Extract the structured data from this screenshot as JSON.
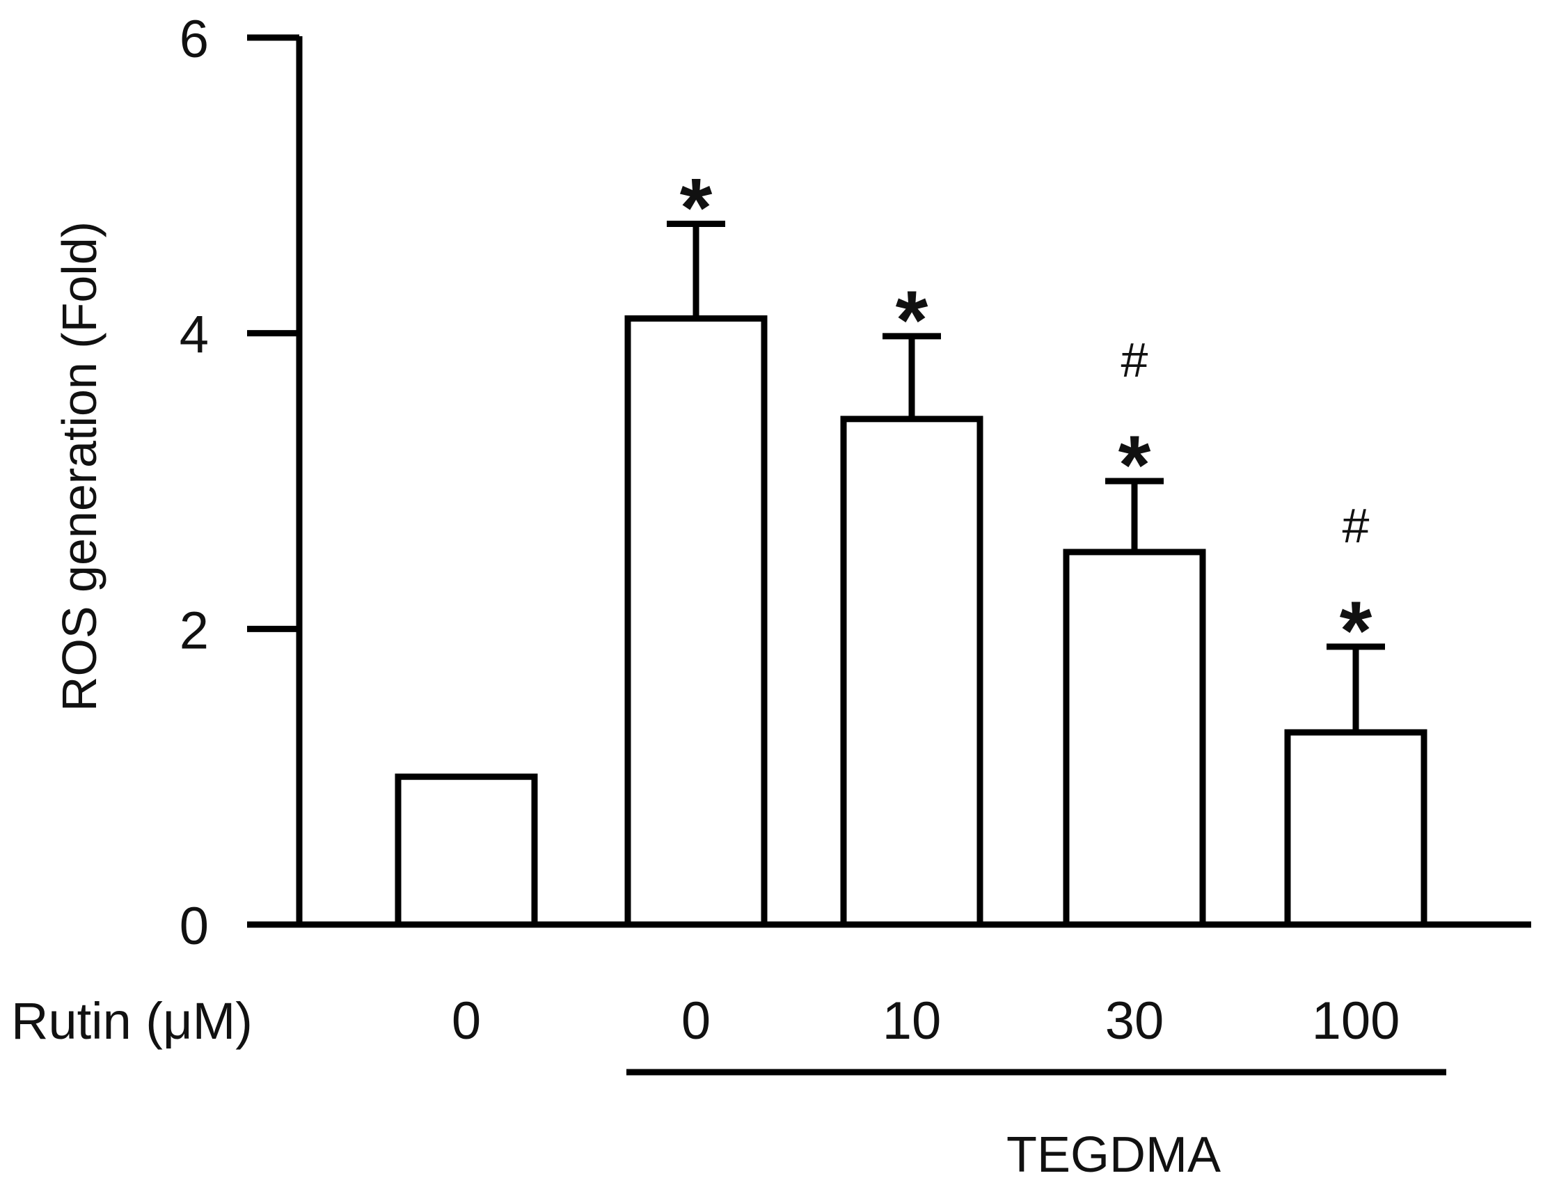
{
  "chart_data": {
    "type": "bar",
    "ylabel": "ROS generation (Fold)",
    "ylim": [
      0,
      6
    ],
    "yticks": [
      "0",
      "2",
      "4",
      "6"
    ],
    "row_label": "Rutin (μM)",
    "categories": [
      "0",
      "0",
      "10",
      "30",
      "100"
    ],
    "values": [
      1.0,
      4.1,
      3.42,
      2.52,
      1.3
    ],
    "errors": [
      0,
      0.64,
      0.56,
      0.48,
      0.58
    ],
    "significance": [
      {
        "star": "",
        "hash": ""
      },
      {
        "star": "*",
        "hash": ""
      },
      {
        "star": "*",
        "hash": ""
      },
      {
        "star": "*",
        "hash": "#"
      },
      {
        "star": "*",
        "hash": "#"
      }
    ],
    "group_label": "TEGDMA",
    "group_span": [
      1,
      4
    ],
    "grid": false,
    "bar_fill": "#ffffff",
    "stroke": "#000000"
  }
}
